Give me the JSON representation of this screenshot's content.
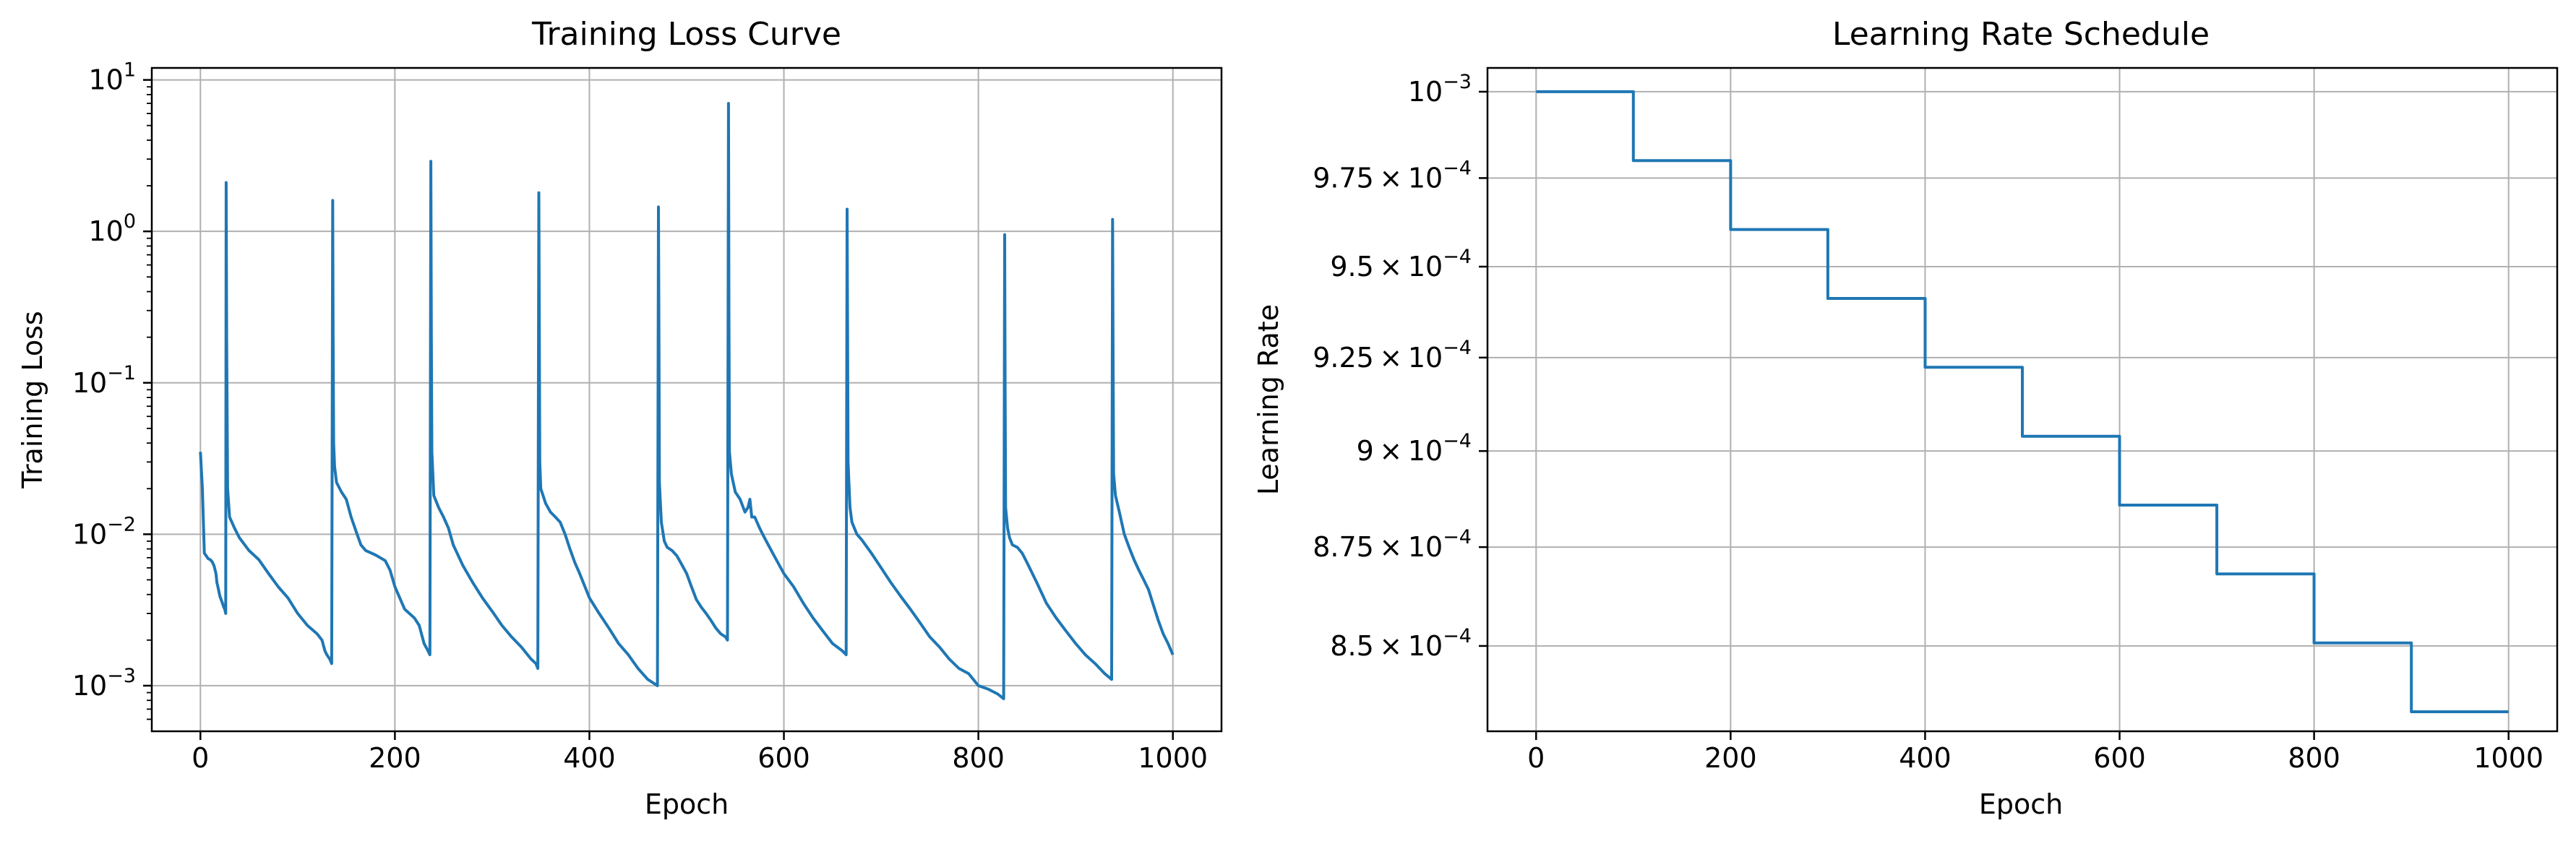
{
  "chart_data": [
    {
      "type": "line",
      "title": "Training Loss Curve",
      "xlabel": "Epoch",
      "ylabel": "Training Loss",
      "xscale": "linear",
      "yscale": "log",
      "xlim": [
        -50,
        1050
      ],
      "ylim": [
        0.0005,
        12
      ],
      "xticks": [
        0,
        200,
        400,
        600,
        800,
        1000
      ],
      "xtick_labels": [
        "0",
        "200",
        "400",
        "600",
        "800",
        "1000"
      ],
      "yticks": [
        0.001,
        0.01,
        0.1,
        1,
        10
      ],
      "ytick_labels": [
        {
          "base": "10",
          "exp": "−3"
        },
        {
          "base": "10",
          "exp": "−2"
        },
        {
          "base": "10",
          "exp": "−1"
        },
        {
          "base": "10",
          "exp": "0"
        },
        {
          "base": "10",
          "exp": "1"
        }
      ],
      "grid": true,
      "color": "#1f77b4",
      "series": [
        {
          "points": [
            [
              0,
              0.035
            ],
            [
              2,
              0.02
            ],
            [
              4,
              0.0075
            ],
            [
              6,
              0.0072
            ],
            [
              8,
              0.0069
            ],
            [
              10,
              0.0068
            ],
            [
              12,
              0.0066
            ],
            [
              14,
              0.0062
            ],
            [
              16,
              0.0055
            ],
            [
              17,
              0.0048
            ],
            [
              18,
              0.0045
            ],
            [
              19,
              0.0042
            ],
            [
              20,
              0.0039
            ],
            [
              22,
              0.0036
            ],
            [
              24,
              0.0033
            ],
            [
              25,
              0.0032
            ],
            [
              26,
              0.003
            ],
            [
              26.5,
              2.1
            ],
            [
              27,
              0.2
            ],
            [
              28,
              0.02
            ],
            [
              30,
              0.013
            ],
            [
              35,
              0.011
            ],
            [
              40,
              0.0095
            ],
            [
              50,
              0.0078
            ],
            [
              60,
              0.0068
            ],
            [
              70,
              0.0055
            ],
            [
              80,
              0.0045
            ],
            [
              90,
              0.0038
            ],
            [
              100,
              0.003
            ],
            [
              110,
              0.0025
            ],
            [
              120,
              0.0022
            ],
            [
              125,
              0.002
            ],
            [
              128,
              0.0017
            ],
            [
              130,
              0.0016
            ],
            [
              133,
              0.0015
            ],
            [
              135,
              0.0014
            ],
            [
              136,
              1.6
            ],
            [
              136.5,
              0.2
            ],
            [
              137,
              0.04
            ],
            [
              138,
              0.028
            ],
            [
              140,
              0.022
            ],
            [
              145,
              0.019
            ],
            [
              150,
              0.017
            ],
            [
              155,
              0.013
            ],
            [
              160,
              0.0105
            ],
            [
              165,
              0.0085
            ],
            [
              170,
              0.0078
            ],
            [
              180,
              0.0073
            ],
            [
              190,
              0.0067
            ],
            [
              195,
              0.0058
            ],
            [
              200,
              0.0045
            ],
            [
              205,
              0.0038
            ],
            [
              210,
              0.0032
            ],
            [
              220,
              0.0028
            ],
            [
              225,
              0.0025
            ],
            [
              230,
              0.0019
            ],
            [
              234,
              0.0017
            ],
            [
              236,
              0.0016
            ],
            [
              237,
              2.9
            ],
            [
              237.5,
              0.2
            ],
            [
              238,
              0.035
            ],
            [
              240,
              0.018
            ],
            [
              245,
              0.015
            ],
            [
              250,
              0.013
            ],
            [
              255,
              0.011
            ],
            [
              260,
              0.0085
            ],
            [
              270,
              0.0062
            ],
            [
              280,
              0.0048
            ],
            [
              290,
              0.0038
            ],
            [
              300,
              0.0031
            ],
            [
              310,
              0.0025
            ],
            [
              320,
              0.0021
            ],
            [
              330,
              0.0018
            ],
            [
              340,
              0.0015
            ],
            [
              345,
              0.0014
            ],
            [
              347,
              0.0013
            ],
            [
              348,
              1.8
            ],
            [
              348.5,
              0.2
            ],
            [
              349,
              0.03
            ],
            [
              350,
              0.02
            ],
            [
              355,
              0.016
            ],
            [
              360,
              0.014
            ],
            [
              365,
              0.013
            ],
            [
              370,
              0.012
            ],
            [
              375,
              0.01
            ],
            [
              380,
              0.008
            ],
            [
              385,
              0.0065
            ],
            [
              390,
              0.0055
            ],
            [
              400,
              0.0038
            ],
            [
              410,
              0.003
            ],
            [
              420,
              0.0024
            ],
            [
              430,
              0.0019
            ],
            [
              440,
              0.0016
            ],
            [
              450,
              0.0013
            ],
            [
              460,
              0.0011
            ],
            [
              465,
              0.00105
            ],
            [
              470,
              0.001
            ],
            [
              471,
              1.45
            ],
            [
              471.5,
              0.2
            ],
            [
              472,
              0.022
            ],
            [
              474,
              0.012
            ],
            [
              477,
              0.009
            ],
            [
              480,
              0.0082
            ],
            [
              485,
              0.0078
            ],
            [
              490,
              0.0072
            ],
            [
              495,
              0.0063
            ],
            [
              500,
              0.0055
            ],
            [
              505,
              0.0045
            ],
            [
              510,
              0.0037
            ],
            [
              515,
              0.0033
            ],
            [
              520,
              0.003
            ],
            [
              525,
              0.0027
            ],
            [
              530,
              0.0024
            ],
            [
              535,
              0.0022
            ],
            [
              540,
              0.0021
            ],
            [
              542,
              0.002
            ],
            [
              543,
              7.0
            ],
            [
              543.5,
              0.3
            ],
            [
              544,
              0.035
            ],
            [
              546,
              0.025
            ],
            [
              550,
              0.019
            ],
            [
              555,
              0.017
            ],
            [
              560,
              0.014
            ],
            [
              563,
              0.015
            ],
            [
              565,
              0.017
            ],
            [
              567,
              0.013
            ],
            [
              570,
              0.013
            ],
            [
              575,
              0.011
            ],
            [
              580,
              0.0095
            ],
            [
              590,
              0.0072
            ],
            [
              600,
              0.0055
            ],
            [
              610,
              0.0045
            ],
            [
              620,
              0.0035
            ],
            [
              630,
              0.0028
            ],
            [
              640,
              0.0023
            ],
            [
              650,
              0.0019
            ],
            [
              660,
              0.0017
            ],
            [
              664,
              0.0016
            ],
            [
              665,
              1.4
            ],
            [
              665.5,
              0.2
            ],
            [
              666,
              0.03
            ],
            [
              668,
              0.015
            ],
            [
              670,
              0.012
            ],
            [
              675,
              0.01
            ],
            [
              680,
              0.0092
            ],
            [
              690,
              0.0075
            ],
            [
              700,
              0.006
            ],
            [
              710,
              0.0048
            ],
            [
              720,
              0.0039
            ],
            [
              730,
              0.0032
            ],
            [
              740,
              0.0026
            ],
            [
              750,
              0.0021
            ],
            [
              760,
              0.0018
            ],
            [
              770,
              0.0015
            ],
            [
              780,
              0.0013
            ],
            [
              790,
              0.0012
            ],
            [
              800,
              0.001
            ],
            [
              810,
              0.00095
            ],
            [
              820,
              0.00088
            ],
            [
              826,
              0.00082
            ],
            [
              827,
              0.95
            ],
            [
              827.5,
              0.1
            ],
            [
              828,
              0.015
            ],
            [
              830,
              0.011
            ],
            [
              832,
              0.0095
            ],
            [
              835,
              0.0085
            ],
            [
              840,
              0.0082
            ],
            [
              845,
              0.0075
            ],
            [
              850,
              0.0065
            ],
            [
              860,
              0.0048
            ],
            [
              870,
              0.0035
            ],
            [
              880,
              0.0028
            ],
            [
              890,
              0.0023
            ],
            [
              900,
              0.0019
            ],
            [
              910,
              0.0016
            ],
            [
              920,
              0.0014
            ],
            [
              930,
              0.0012
            ],
            [
              937,
              0.0011
            ],
            [
              938,
              1.2
            ],
            [
              938.5,
              0.15
            ],
            [
              939,
              0.025
            ],
            [
              941,
              0.018
            ],
            [
              945,
              0.014
            ],
            [
              950,
              0.01
            ],
            [
              955,
              0.0082
            ],
            [
              960,
              0.0068
            ],
            [
              965,
              0.0058
            ],
            [
              970,
              0.005
            ],
            [
              975,
              0.0043
            ],
            [
              980,
              0.0034
            ],
            [
              985,
              0.0027
            ],
            [
              990,
              0.0022
            ],
            [
              995,
              0.0019
            ],
            [
              1000,
              0.0016
            ]
          ]
        }
      ]
    },
    {
      "type": "line",
      "title": "Learning Rate Schedule",
      "xlabel": "Epoch",
      "ylabel": "Learning Rate",
      "xscale": "linear",
      "yscale": "log",
      "xlim": [
        -50,
        1050
      ],
      "ylim": [
        0.000829,
        0.001007
      ],
      "xticks": [
        0,
        200,
        400,
        600,
        800,
        1000
      ],
      "xtick_labels": [
        "0",
        "200",
        "400",
        "600",
        "800",
        "1000"
      ],
      "yticks": [
        0.001,
        0.000975,
        0.00095,
        0.000925,
        0.0009,
        0.000875,
        0.00085
      ],
      "ytick_labels": [
        {
          "mant": "",
          "base": "10",
          "exp": "−3"
        },
        {
          "mant": "9.75",
          "base": "10",
          "exp": "−4"
        },
        {
          "mant": "9.5",
          "base": "10",
          "exp": "−4"
        },
        {
          "mant": "9.25",
          "base": "10",
          "exp": "−4"
        },
        {
          "mant": "9",
          "base": "10",
          "exp": "−4"
        },
        {
          "mant": "8.75",
          "base": "10",
          "exp": "−4"
        },
        {
          "mant": "8.5",
          "base": "10",
          "exp": "−4"
        }
      ],
      "grid": true,
      "color": "#1f77b4",
      "series": [
        {
          "step_edges": [
            0,
            100,
            200,
            300,
            400,
            500,
            600,
            700,
            800,
            900,
            1000
          ],
          "step_values": [
            0.001,
            0.00098,
            0.0009604,
            0.00094119,
            0.00092237,
            0.00090392,
            0.00088584,
            0.00086813,
            0.00085076,
            0.00083375
          ]
        }
      ]
    }
  ]
}
